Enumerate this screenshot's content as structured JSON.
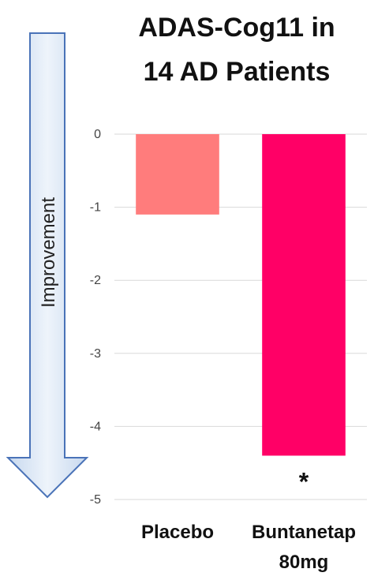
{
  "chart_data": {
    "type": "bar",
    "title_lines": [
      "ADAS-Cog11 in",
      "14 AD Patients"
    ],
    "categories": [
      {
        "lines": [
          "Placebo"
        ]
      },
      {
        "lines": [
          "Buntanetap",
          "80mg"
        ]
      }
    ],
    "values": [
      -1.1,
      -4.4
    ],
    "colors": [
      "#FF7C7C",
      "#FF0066"
    ],
    "ylim": [
      -5,
      0
    ],
    "yticks": [
      0,
      -1,
      -2,
      -3,
      -4,
      -5
    ],
    "grid": true,
    "annotations": [
      {
        "category_index": 1,
        "text": "*"
      }
    ],
    "side_arrow": {
      "label": "Improvement",
      "direction": "down",
      "fill": "#D6E4F5",
      "stroke": "#4A73B8"
    }
  }
}
